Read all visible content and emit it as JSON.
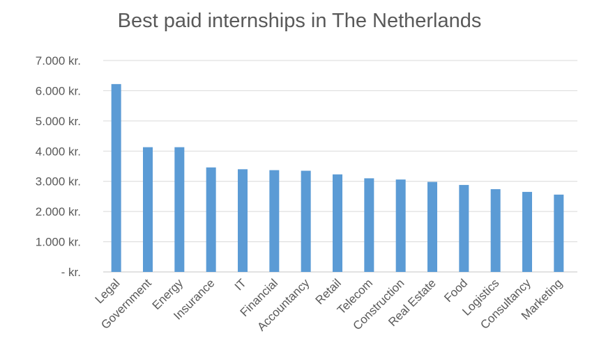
{
  "chart_data": {
    "type": "bar",
    "title": "Best paid internships in The Netherlands",
    "categories": [
      "Legal",
      "Government",
      "Energy",
      "Insurance",
      "IT",
      "Financial",
      "Accountancy",
      "Retail",
      "Telecom",
      "Construction",
      "Real Estate",
      "Food",
      "Logistics",
      "Consultancy",
      "Marketing"
    ],
    "values": [
      6220,
      4130,
      4130,
      3460,
      3400,
      3370,
      3350,
      3230,
      3100,
      3060,
      2980,
      2880,
      2740,
      2650,
      2560
    ],
    "ylim": [
      0,
      7000
    ],
    "yticks": [
      0,
      1000,
      2000,
      3000,
      4000,
      5000,
      6000,
      7000
    ],
    "ytick_labels": [
      "- kr.",
      "1.000 kr.",
      "2.000 kr.",
      "3.000 kr.",
      "4.000 kr.",
      "5.000 kr.",
      "6.000 kr.",
      "7.000 kr."
    ],
    "grid": true,
    "legend": "none",
    "bar_color": "#5b9bd5",
    "grid_color": "#d9d9d9"
  }
}
